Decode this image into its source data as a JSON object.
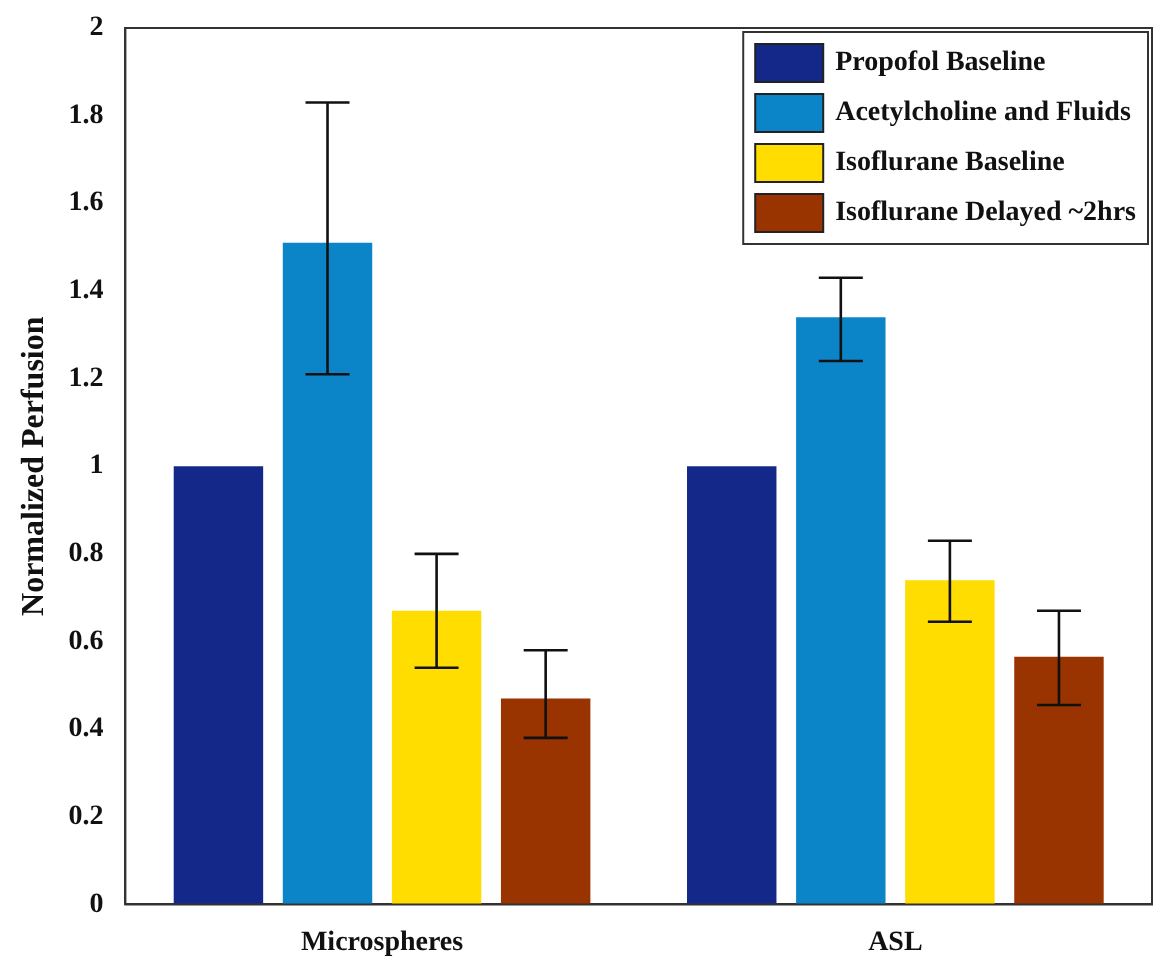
{
  "chart_data": {
    "type": "bar",
    "ylabel": "Normalized Perfusion",
    "categories": [
      "Microspheres",
      "ASL"
    ],
    "series": [
      {
        "name": "Propofol Baseline",
        "color": "#14288a",
        "values": [
          1.0,
          1.0
        ]
      },
      {
        "name": "Acetylcholine and Fluids",
        "color": "#0b85c8",
        "values": [
          1.51,
          1.34
        ],
        "errors": [
          [
            1.21,
            1.83
          ],
          [
            1.24,
            1.43
          ]
        ]
      },
      {
        "name": "Isoflurane Baseline",
        "color": "#ffdd00",
        "values": [
          0.67,
          0.74
        ],
        "errors": [
          [
            0.54,
            0.8
          ],
          [
            0.645,
            0.83
          ]
        ]
      },
      {
        "name": "Isoflurane Delayed ~2hrs",
        "color": "#993300",
        "values": [
          0.47,
          0.565
        ],
        "errors": [
          [
            0.38,
            0.58
          ],
          [
            0.455,
            0.67
          ]
        ]
      }
    ],
    "ylim": [
      0,
      2
    ],
    "yticks": [
      0,
      0.2,
      0.4,
      0.6,
      0.8,
      1,
      1.2,
      1.4,
      1.6,
      1.8,
      2
    ],
    "grid": false,
    "legend": "top right"
  }
}
